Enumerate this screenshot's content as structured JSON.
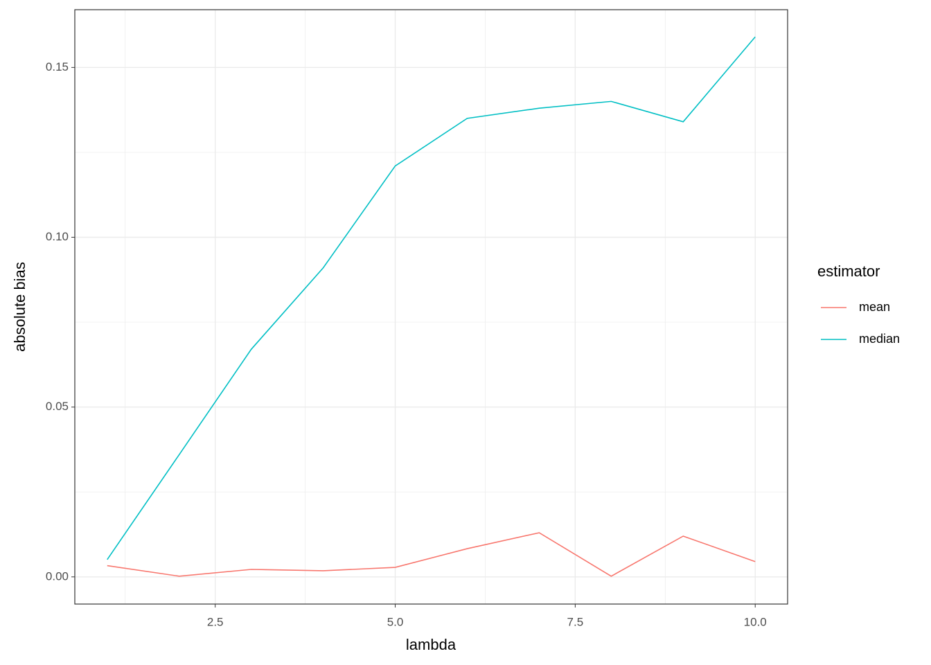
{
  "chart_data": {
    "type": "line",
    "x_label": "lambda",
    "y_label": "absolute bias",
    "legend_title": "estimator",
    "legend": "right",
    "x": [
      1,
      2,
      3,
      4,
      5,
      6,
      7,
      8,
      9,
      10
    ],
    "series": [
      {
        "name": "mean",
        "color": "#F8766D",
        "values": [
          0.0033,
          0.0002,
          0.0022,
          0.0018,
          0.0028,
          0.0083,
          0.013,
          0.0002,
          0.012,
          0.0045
        ]
      },
      {
        "name": "median",
        "color": "#00BFC4",
        "values": [
          0.0051,
          0.036,
          0.067,
          0.091,
          0.121,
          0.135,
          0.138,
          0.14,
          0.134,
          0.159
        ]
      }
    ],
    "xlim": [
      0.55,
      10.45
    ],
    "xticks": [
      {
        "value": 2.5,
        "label": "2.5"
      },
      {
        "value": 5,
        "label": "5.0"
      },
      {
        "value": 7.5,
        "label": "7.5"
      },
      {
        "value": 10,
        "label": "10.0"
      }
    ],
    "ylim": [
      -0.008,
      0.167
    ],
    "yticks": [
      {
        "value": 0,
        "label": "0.00"
      },
      {
        "value": 0.05,
        "label": "0.05"
      },
      {
        "value": 0.1,
        "label": "0.10"
      },
      {
        "value": 0.15,
        "label": "0.15"
      }
    ],
    "grid": true
  }
}
